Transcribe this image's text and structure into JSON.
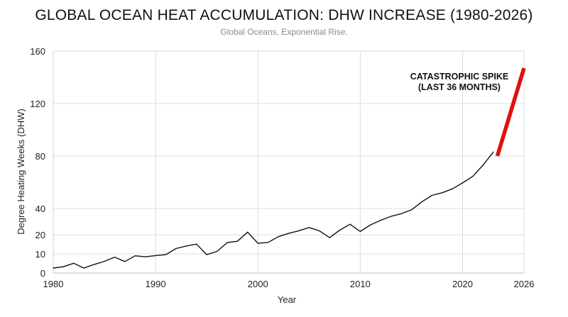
{
  "chart_data": {
    "type": "line",
    "title": "GLOBAL OCEAN HEAT ACCUMULATION: DHW INCREASE (1980-2026)",
    "subtitle": "Global Oceans, Exponential Rise.",
    "xlabel": "Year",
    "ylabel": "Degree Heating Weeks (DHW)",
    "xlim": [
      1980,
      2026
    ],
    "x_ticks": [
      1980,
      1990,
      2000,
      2010,
      2020,
      2026
    ],
    "y_ticks": [
      0,
      10,
      20,
      40,
      80,
      120,
      160
    ],
    "y_scale_note": "piecewise axis: 0-20 and 20-160 segments",
    "grid": true,
    "series": [
      {
        "color": "#111111",
        "x": [
          1980,
          1981,
          1982,
          1983,
          1984,
          1985,
          1986,
          1987,
          1988,
          1989,
          1990,
          1991,
          1992,
          1993,
          1994,
          1995,
          1996,
          1997,
          1998,
          1999,
          2000,
          2001,
          2002,
          2003,
          2004,
          2005,
          2006,
          2007,
          2008,
          2009,
          2010,
          2011,
          2012,
          2013,
          2014,
          2015,
          2016,
          2017,
          2018,
          2019,
          2020,
          2021,
          2022,
          2023
        ],
        "y": [
          2.6,
          3.3,
          5.1,
          2.6,
          4.5,
          6.1,
          8.3,
          6.0,
          9.0,
          8.5,
          9.1,
          9.6,
          12.8,
          14.1,
          15.1,
          9.6,
          11.3,
          15.9,
          16.6,
          22.0,
          15.5,
          16.0,
          19.0,
          21.0,
          23.0,
          25.5,
          23.0,
          18.5,
          23.5,
          28.0,
          22.5,
          27.5,
          31.0,
          34.0,
          36.0,
          39.0,
          45.0,
          50.0,
          52.0,
          55.0,
          59.5,
          64.5,
          73.0,
          83.0
        ]
      },
      {
        "color": "#e01010",
        "x": [
          2023.4,
          2026
        ],
        "y": [
          80.0,
          147.0
        ]
      }
    ],
    "annotation": {
      "line1": "CATASTROPHIC SPIKE",
      "line2": "(LAST 36 MONTHS)"
    }
  }
}
